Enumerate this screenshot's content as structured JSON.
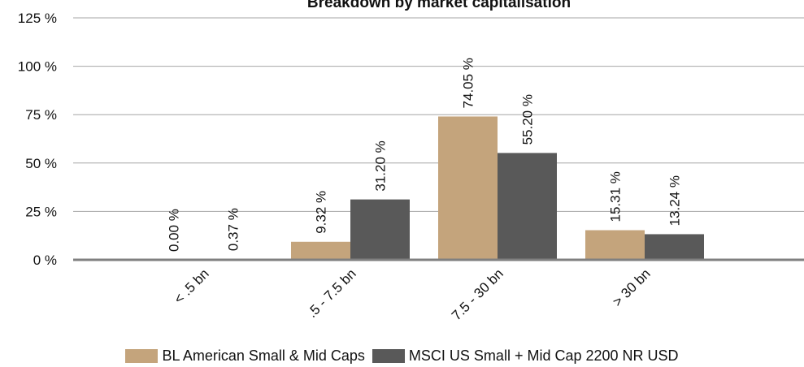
{
  "chart_data": {
    "type": "bar",
    "title": "Breakdown by market capitalisation",
    "categories": [
      "< .5 bn",
      ".5 - 7.5 bn",
      "7.5 - 30 bn",
      "> 30 bn"
    ],
    "series": [
      {
        "name": "BL American Small & Mid Caps",
        "color": "#c4a47c",
        "values": [
          0.0,
          9.32,
          74.05,
          15.31
        ],
        "labels": [
          "0.00 %",
          "9.32 %",
          "74.05 %",
          "15.31 %"
        ]
      },
      {
        "name": "MSCI US Small + Mid Cap 2200 NR USD",
        "color": "#595959",
        "values": [
          0.37,
          31.2,
          55.2,
          13.24
        ],
        "labels": [
          "0.37 %",
          "31.20 %",
          "55.20 %",
          "13.24 %"
        ]
      }
    ],
    "ylim": [
      0,
      125
    ],
    "yticks": [
      0,
      25,
      50,
      75,
      100,
      125
    ],
    "ytick_labels": [
      "0 %",
      "25 %",
      "50 %",
      "75 %",
      "100 %",
      "125 %"
    ],
    "grid": true,
    "legend_position": "bottom"
  }
}
